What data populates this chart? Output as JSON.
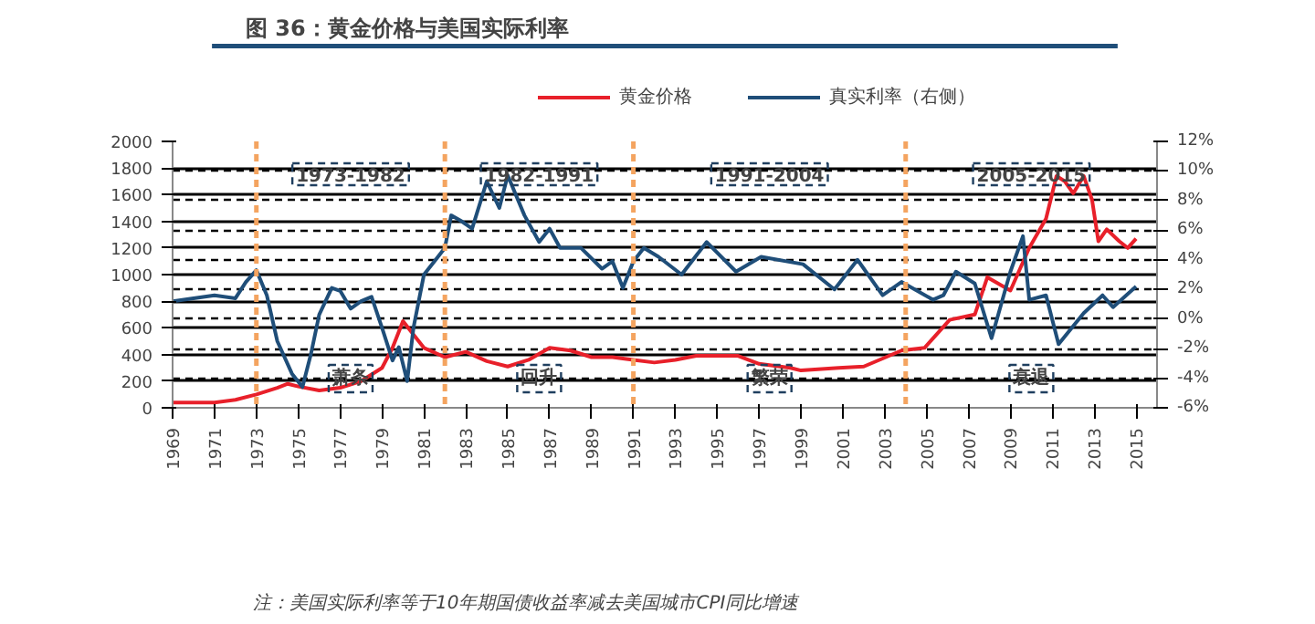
{
  "chart_data": {
    "type": "line",
    "title": "图 36：黄金价格与美国实际利率",
    "legend": "top",
    "grid": true,
    "line_style": "solid",
    "marker": "none",
    "xlim": [
      1969,
      2016
    ],
    "xticks": [
      1969,
      1971,
      1973,
      1975,
      1977,
      1979,
      1981,
      1983,
      1985,
      1987,
      1989,
      1991,
      1993,
      1995,
      1997,
      1999,
      2001,
      2003,
      2005,
      2007,
      2009,
      2011,
      2013,
      2015
    ],
    "ylim": [
      0,
      2000
    ],
    "yticks": [
      0,
      200,
      400,
      600,
      800,
      1000,
      1200,
      1400,
      1600,
      1800,
      2000
    ],
    "y2lim": [
      -6,
      12
    ],
    "y2ticks": [
      {
        "value": -6,
        "label": "-6%"
      },
      {
        "value": -4,
        "label": "-4%"
      },
      {
        "value": -2,
        "label": "-2%"
      },
      {
        "value": 0,
        "label": "0%"
      },
      {
        "value": 2,
        "label": "2%"
      },
      {
        "value": 4,
        "label": "4%"
      },
      {
        "value": 6,
        "label": "6%"
      },
      {
        "value": 8,
        "label": "8%"
      },
      {
        "value": 10,
        "label": "10%"
      },
      {
        "value": 12,
        "label": "12%"
      }
    ],
    "series": [
      {
        "name": "黄金价格",
        "color": "#e8202a",
        "x": [
          1969,
          1970,
          1971,
          1972,
          1973,
          1974,
          1974.5,
          1975,
          1976,
          1977,
          1978,
          1979,
          1979.5,
          1980,
          1980.5,
          1981,
          1982,
          1983,
          1984,
          1985,
          1986,
          1987,
          1988,
          1989,
          1990,
          1991,
          1992,
          1993,
          1994,
          1995,
          1996,
          1997,
          1998.5,
          1999,
          2000.8,
          2002,
          2003.8,
          2004.9,
          2006.1,
          2007.3,
          2007.9,
          2009,
          2009.9,
          2010.7,
          2011.2,
          2011.6,
          2012,
          2012.5,
          2012.9,
          2013.2,
          2013.6,
          2014.2,
          2014.6,
          2015
        ],
        "values": [
          40,
          40,
          40,
          60,
          100,
          150,
          180,
          160,
          130,
          150,
          200,
          300,
          450,
          650,
          550,
          450,
          380,
          420,
          350,
          310,
          360,
          450,
          430,
          380,
          380,
          360,
          340,
          360,
          390,
          390,
          390,
          330,
          300,
          280,
          300,
          310,
          430,
          450,
          660,
          700,
          980,
          880,
          1200,
          1420,
          1740,
          1700,
          1610,
          1740,
          1560,
          1250,
          1340,
          1250,
          1200,
          1270
        ]
      },
      {
        "name": "真实利率（右侧）",
        "color": "#1f4e79",
        "axis": "y2",
        "x": [
          1969,
          1970,
          1971,
          1972,
          1972.5,
          1973,
          1973.5,
          1974,
          1974.7,
          1975.2,
          1975.6,
          1976,
          1976.6,
          1977,
          1977.5,
          1978,
          1978.5,
          1979,
          1979.5,
          1979.8,
          1980.2,
          1980.5,
          1981,
          1981.5,
          1982,
          1982.3,
          1982.8,
          1983.3,
          1984,
          1984.6,
          1985,
          1985.8,
          1986.5,
          1987,
          1987.5,
          1988.5,
          1989.5,
          1990,
          1990.5,
          1991,
          1991.5,
          1992.2,
          1993.3,
          1994.5,
          1995.9,
          1997.1,
          1999.1,
          2000.6,
          2001.7,
          2002.9,
          2003.8,
          2005.3,
          2005.8,
          2006.4,
          2007.3,
          2008.1,
          2009,
          2009.6,
          2009.9,
          2010.7,
          2011.3,
          2012.5,
          2013.4,
          2013.9,
          2015
        ],
        "values": [
          1.2,
          1.4,
          1.6,
          1.4,
          2.5,
          3.3,
          1.6,
          -1.5,
          -3.7,
          -4.6,
          -2.4,
          0.3,
          2.1,
          1.9,
          0.7,
          1.2,
          1.5,
          -0.6,
          -2.8,
          -1.9,
          -4.2,
          -0.6,
          3,
          3.9,
          4.8,
          7,
          6.6,
          6.1,
          9.3,
          7.5,
          9.7,
          7,
          5.2,
          6.1,
          4.8,
          4.8,
          3.4,
          3.9,
          2.1,
          3.9,
          4.8,
          4.2,
          3,
          5.2,
          3.2,
          4.2,
          3.7,
          2,
          4,
          1.6,
          2.5,
          1.3,
          1.6,
          3.2,
          2.4,
          -1.3,
          3.2,
          5.6,
          1.3,
          1.6,
          -1.7,
          0.4,
          1.6,
          0.8,
          2.2
        ]
      }
    ],
    "ref_lines": [
      {
        "axis": "x",
        "value": 1973,
        "color": "#f4a460",
        "line_style": "dashed"
      },
      {
        "axis": "x",
        "value": 1982,
        "color": "#f4a460",
        "line_style": "dashed"
      },
      {
        "axis": "x",
        "value": 1991,
        "color": "#f4a460",
        "line_style": "dashed"
      },
      {
        "axis": "x",
        "value": 2004,
        "color": "#f4a460",
        "line_style": "dashed"
      }
    ],
    "annotations": [
      "1973-1982",
      "1982-1991",
      "1991-2004",
      "2005-2015",
      "萧条",
      "回升",
      "繁荣",
      "衰退",
      "注：美国实际利率等于10年期国债收益率减去美国城市CPI同比增速"
    ]
  }
}
